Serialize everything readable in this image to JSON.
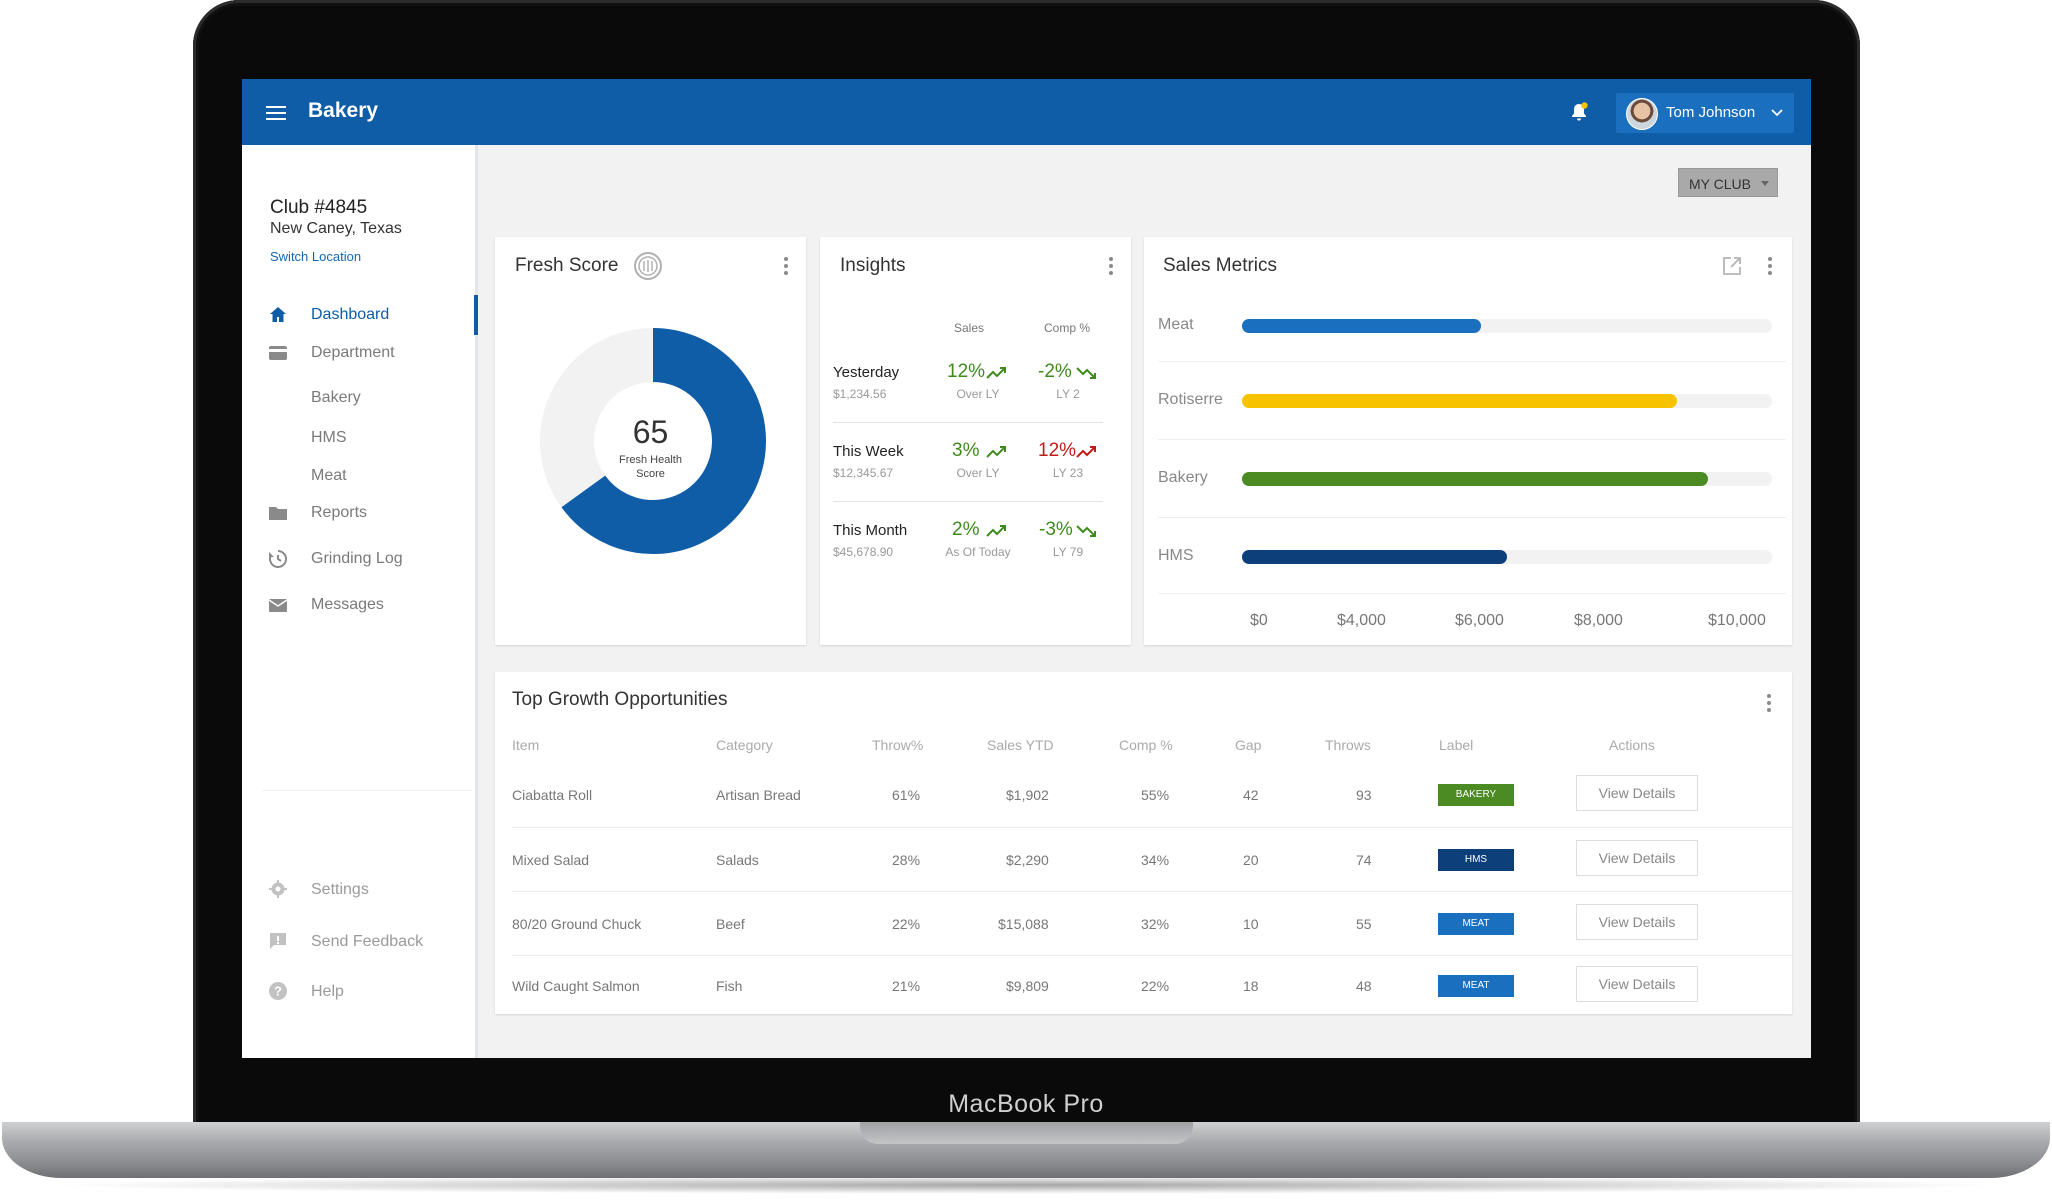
{
  "device": {
    "brand": "MacBook Pro"
  },
  "header": {
    "title": "Bakery",
    "user_name": "Tom Johnson"
  },
  "sidebar": {
    "club": "Club #4845",
    "location": "New Caney, Texas",
    "switch_location": "Switch Location",
    "nav": [
      {
        "label": "Dashboard",
        "icon": "home-icon",
        "active": true
      },
      {
        "label": "Department",
        "icon": "card-icon"
      },
      {
        "label": "Bakery"
      },
      {
        "label": "HMS"
      },
      {
        "label": "Meat"
      },
      {
        "label": "Reports",
        "icon": "folder-icon"
      },
      {
        "label": "Grinding Log",
        "icon": "history-icon"
      },
      {
        "label": "Messages",
        "icon": "mail-icon"
      }
    ],
    "footer": [
      {
        "label": "Settings",
        "icon": "gear-icon"
      },
      {
        "label": "Send Feedback",
        "icon": "feedback-icon"
      },
      {
        "label": "Help",
        "icon": "help-icon"
      }
    ]
  },
  "filter": {
    "my_club": "MY CLUB"
  },
  "fresh_score": {
    "title": "Fresh Score",
    "score": "65",
    "label_line1": "Fresh Health",
    "label_line2": "Score",
    "score_fraction": 0.65,
    "color": "#0f5ca7"
  },
  "insights": {
    "title": "Insights",
    "col_sales": "Sales",
    "col_comp": "Comp %",
    "rows": [
      {
        "period": "Yesterday",
        "amount": "$1,234.56",
        "sales": "12%",
        "sales_sub": "Over LY",
        "comp": "-2%",
        "comp_sub": "LY 2",
        "sales_dir": "up",
        "comp_dir": "down-green"
      },
      {
        "period": "This Week",
        "amount": "$12,345.67",
        "sales": "3%",
        "sales_sub": "Over LY",
        "comp": "12%",
        "comp_sub": "LY 23",
        "sales_dir": "up",
        "comp_dir": "up-red"
      },
      {
        "period": "This Month",
        "amount": "$45,678.90",
        "sales": "2%",
        "sales_sub": "As Of Today",
        "comp": "-3%",
        "comp_sub": "LY 79",
        "sales_dir": "up",
        "comp_dir": "down-green"
      }
    ]
  },
  "sales_metrics": {
    "title": "Sales Metrics",
    "ticks": [
      "$0",
      "$4,000",
      "$6,000",
      "$8,000",
      "$10,000"
    ],
    "bars": [
      {
        "label": "Meat",
        "fraction": 0.45,
        "color": "#1a6fbe"
      },
      {
        "label": "Rotiserre",
        "fraction": 0.82,
        "color": "#f7c300"
      },
      {
        "label": "Bakery",
        "fraction": 0.88,
        "color": "#4c8a24"
      },
      {
        "label": "HMS",
        "fraction": 0.5,
        "color": "#0d3f7a"
      }
    ]
  },
  "growth": {
    "title": "Top Growth Opportunities",
    "columns": [
      "Item",
      "Category",
      "Throw%",
      "Sales YTD",
      "Comp %",
      "Gap",
      "Throws",
      "Label",
      "Actions"
    ],
    "rows": [
      {
        "item": "Ciabatta Roll",
        "category": "Artisan Bread",
        "throw": "61%",
        "sales": "$1,902",
        "comp": "55%",
        "gap": "42",
        "throws": "93",
        "label": "BAKERY",
        "label_color": "#4c8a24",
        "action": "View Details"
      },
      {
        "item": "Mixed Salad",
        "category": "Salads",
        "throw": "28%",
        "sales": "$2,290",
        "comp": "34%",
        "gap": "20",
        "throws": "74",
        "label": "HMS",
        "label_color": "#0d3f7a",
        "action": "View Details"
      },
      {
        "item": "80/20 Ground Chuck",
        "category": "Beef",
        "throw": "22%",
        "sales": "$15,088",
        "comp": "32%",
        "gap": "10",
        "throws": "55",
        "label": "MEAT",
        "label_color": "#1a6fbe",
        "action": "View Details"
      },
      {
        "item": "Wild Caught Salmon",
        "category": "Fish",
        "throw": "21%",
        "sales": "$9,809",
        "comp": "22%",
        "gap": "18",
        "throws": "48",
        "label": "MEAT",
        "label_color": "#1a6fbe",
        "action": "View Details"
      }
    ]
  }
}
